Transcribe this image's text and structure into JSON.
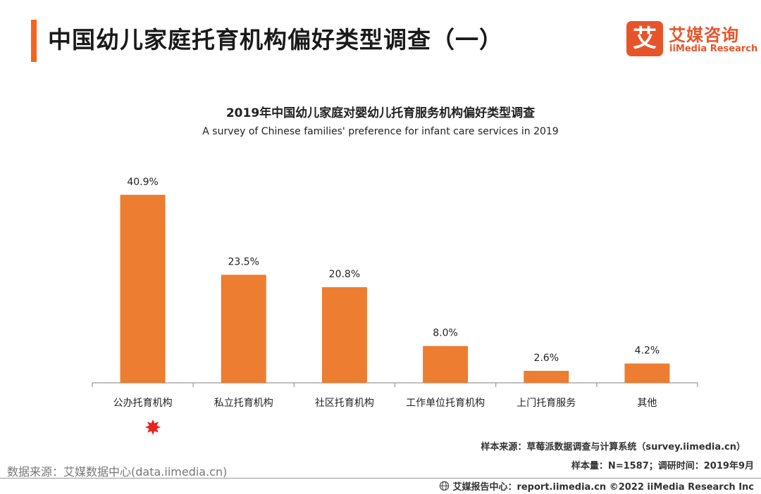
{
  "header": {
    "title": "中国幼儿家庭托育机构偏好类型调查（一）",
    "accent_color": "#F4651F"
  },
  "logo": {
    "badge_char": "艾",
    "name_cn": "艾媒咨询",
    "name_en": "iiMedia Research",
    "color": "#E8542A"
  },
  "chart_data": {
    "type": "bar",
    "title": "2019年中国幼儿家庭对婴幼儿托育服务机构偏好类型调查",
    "subtitle": "A survey of Chinese families' preference for infant care services in 2019",
    "categories": [
      "公办托育机构",
      "私立托育机构",
      "社区托育机构",
      "工作单位托育机构",
      "上门托育服务",
      "其他"
    ],
    "values": [
      40.9,
      23.5,
      20.8,
      8.0,
      2.6,
      4.2
    ],
    "value_labels": [
      "40.9%",
      "23.5%",
      "20.8%",
      "8.0%",
      "2.6%",
      "4.2%"
    ],
    "unit": "%",
    "ylim": [
      0,
      45
    ],
    "bar_color": "#ED7D31",
    "highlight_category": "公办托育机构",
    "highlight_color": "#E8251E",
    "grid": false,
    "legend": "none"
  },
  "notes": {
    "sample_source": "样本来源：草莓派数据调查与计算系统（survey.iimedia.cn）",
    "sample_size": "样本量：N=1587；调研时间：2019年9月",
    "data_source": "数据来源：艾媒数据中心(data.iimedia.cn)"
  },
  "footer": {
    "text": "艾媒报告中心：report.iimedia.cn  ©2022  iiMedia Research  Inc",
    "icon": "globe-icon"
  }
}
